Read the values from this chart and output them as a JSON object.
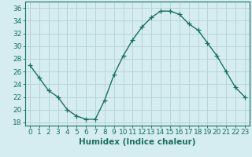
{
  "x": [
    0,
    1,
    2,
    3,
    4,
    5,
    6,
    7,
    8,
    9,
    10,
    11,
    12,
    13,
    14,
    15,
    16,
    17,
    18,
    19,
    20,
    21,
    22,
    23
  ],
  "y": [
    27,
    25,
    23,
    22,
    20,
    19,
    18.5,
    18.5,
    21.5,
    25.5,
    28.5,
    31,
    33,
    34.5,
    35.5,
    35.5,
    35,
    33.5,
    32.5,
    30.5,
    28.5,
    26,
    23.5,
    22
  ],
  "line_color": "#1a7060",
  "marker": "+",
  "marker_size": 4,
  "bg_color": "#d5edf0",
  "grid_color": "#b8d4d8",
  "xlabel": "Humidex (Indice chaleur)",
  "xlim": [
    -0.5,
    23.5
  ],
  "ylim": [
    17.5,
    37.0
  ],
  "yticks": [
    18,
    20,
    22,
    24,
    26,
    28,
    30,
    32,
    34,
    36
  ],
  "xticks": [
    0,
    1,
    2,
    3,
    4,
    5,
    6,
    7,
    8,
    9,
    10,
    11,
    12,
    13,
    14,
    15,
    16,
    17,
    18,
    19,
    20,
    21,
    22,
    23
  ],
  "tick_color": "#1a7060",
  "label_fontsize": 7.5,
  "tick_fontsize": 6.5,
  "linewidth": 1.0,
  "markeredgewidth": 0.9
}
